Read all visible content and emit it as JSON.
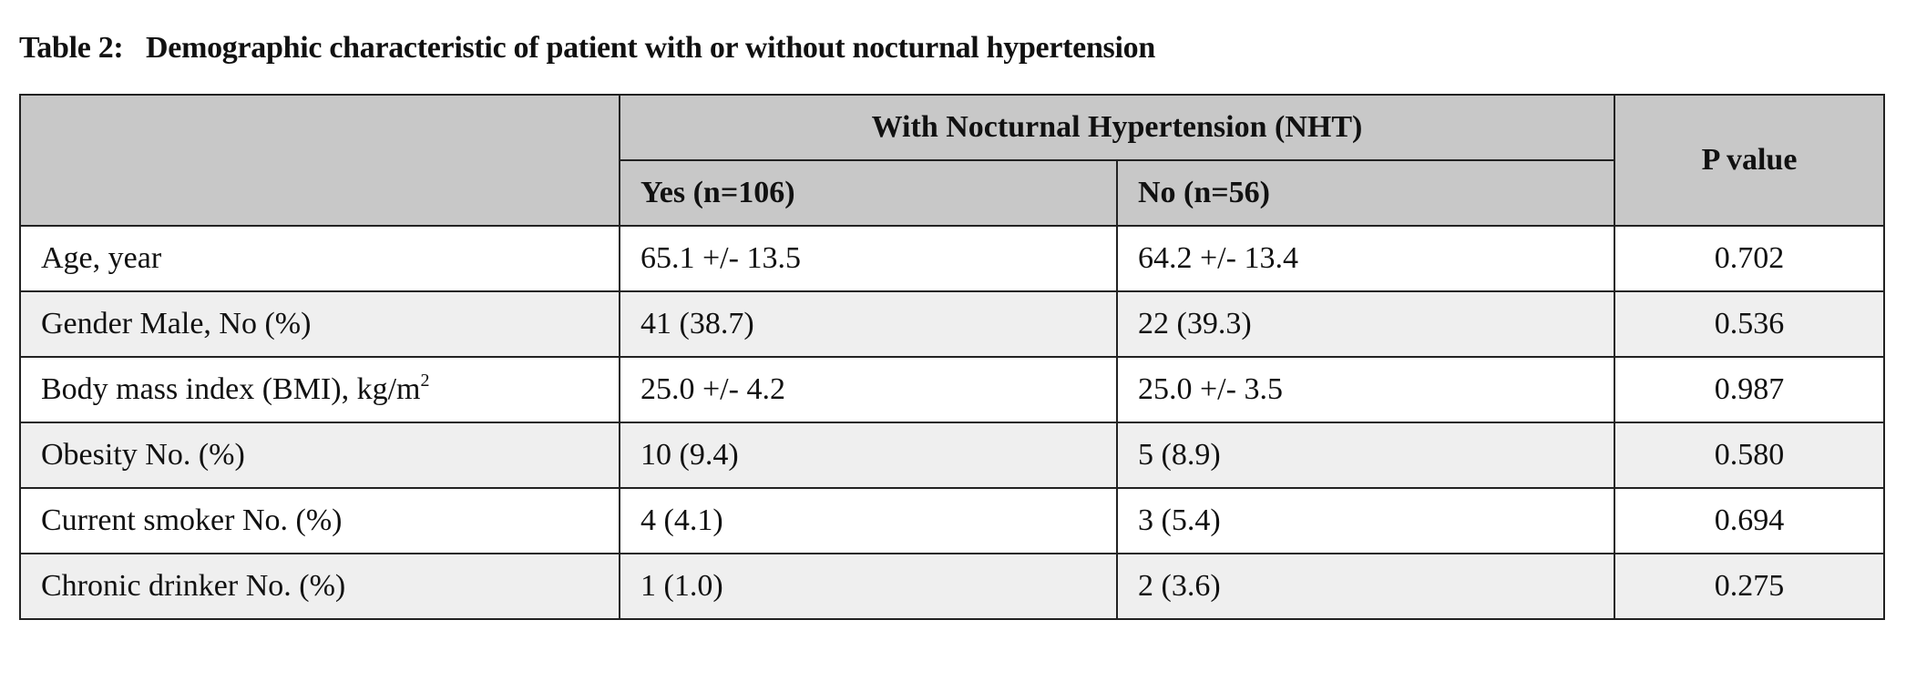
{
  "title": "Table 2:   Demographic characteristic of patient with or without nocturnal hypertension",
  "table": {
    "header": {
      "group": "With Nocturnal Hypertension (NHT)",
      "yes": "Yes (n=106)",
      "no": "No (n=56)",
      "p": "P value"
    },
    "rows": [
      {
        "label": "Age, year",
        "yes": "65.1 +/- 13.5",
        "no": "64.2 +/- 13.4",
        "p": "0.702"
      },
      {
        "label": "Gender Male, No (%)",
        "yes": "41 (38.7)",
        "no": "22 (39.3)",
        "p": "0.536"
      },
      {
        "label": "Body mass index (BMI), kg/m",
        "label_sup": "2",
        "yes": "25.0 +/- 4.2",
        "no": "25.0 +/- 3.5",
        "p": "0.987"
      },
      {
        "label": "Obesity No. (%)",
        "yes": "10 (9.4)",
        "no": "5 (8.9)",
        "p": "0.580"
      },
      {
        "label": "Current smoker No. (%)",
        "yes": "4 (4.1)",
        "no": "3 (5.4)",
        "p": "0.694"
      },
      {
        "label": "Chronic drinker No. (%)",
        "yes": "1 (1.0)",
        "no": "2 (3.6)",
        "p": "0.275"
      }
    ]
  }
}
